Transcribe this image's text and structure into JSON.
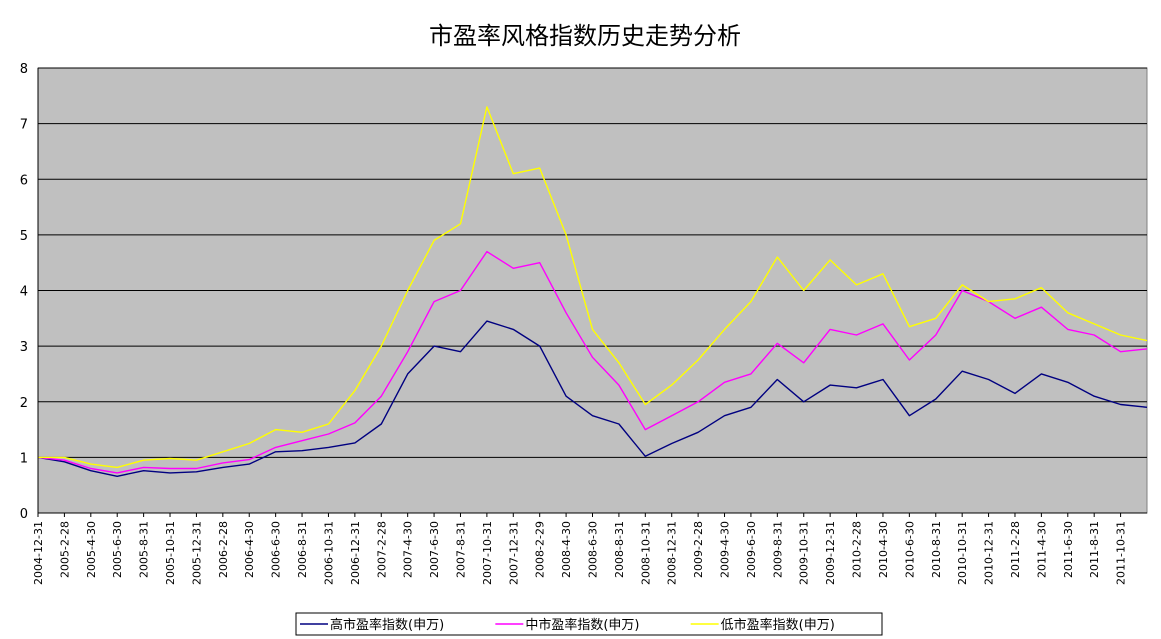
{
  "chart_data": {
    "type": "line",
    "title": "市盈率风格指数历史走势分析",
    "xlabel": "",
    "ylabel": "",
    "ylim": [
      0,
      8
    ],
    "yticks": [
      "0",
      "1",
      "2",
      "3",
      "4",
      "5",
      "6",
      "7",
      "8"
    ],
    "grid": "horizontal",
    "plot_background": "#C0C0C0",
    "legend_position": "bottom",
    "x_tick_labels": [
      "2004-12-31",
      "2005-2-28",
      "2005-4-30",
      "2005-6-30",
      "2005-8-31",
      "2005-10-31",
      "2005-12-31",
      "2006-2-28",
      "2006-4-30",
      "2006-6-30",
      "2006-8-31",
      "2006-10-31",
      "2006-12-31",
      "2007-2-28",
      "2007-4-30",
      "2007-6-30",
      "2007-8-31",
      "2007-10-31",
      "2007-12-31",
      "2008-2-29",
      "2008-4-30",
      "2008-6-30",
      "2008-8-31",
      "2008-10-31",
      "2008-12-31",
      "2009-2-28",
      "2009-4-30",
      "2009-6-30",
      "2009-8-31",
      "2009-10-31",
      "2009-12-31",
      "2010-2-28",
      "2010-4-30",
      "2010-6-30",
      "2010-8-31",
      "2010-10-31",
      "2010-12-31",
      "2011-2-28",
      "2011-4-30",
      "2011-6-30",
      "2011-8-31",
      "2011-10-31"
    ],
    "x": [
      "2004-12-31",
      "2005-2-28",
      "2005-4-30",
      "2005-6-30",
      "2005-8-31",
      "2005-10-31",
      "2005-12-31",
      "2006-2-28",
      "2006-4-30",
      "2006-6-30",
      "2006-8-31",
      "2006-10-31",
      "2006-12-31",
      "2007-2-28",
      "2007-4-30",
      "2007-6-30",
      "2007-8-31",
      "2007-10-31",
      "2007-12-31",
      "2008-2-29",
      "2008-4-30",
      "2008-6-30",
      "2008-8-31",
      "2008-10-31",
      "2008-12-31",
      "2009-2-28",
      "2009-4-30",
      "2009-6-30",
      "2009-8-31",
      "2009-10-31",
      "2009-12-31",
      "2010-2-28",
      "2010-4-30",
      "2010-6-30",
      "2010-8-31",
      "2010-10-31",
      "2010-12-31",
      "2011-2-28",
      "2011-4-30",
      "2011-6-30",
      "2011-8-31",
      "2011-10-31",
      "2011-12-30"
    ],
    "series": [
      {
        "name": "高市盈率指数(申万)",
        "color": "#000080",
        "values": [
          1.0,
          0.92,
          0.76,
          0.66,
          0.76,
          0.72,
          0.74,
          0.82,
          0.88,
          1.1,
          1.12,
          1.18,
          1.26,
          1.6,
          2.5,
          3.0,
          2.9,
          3.45,
          3.3,
          3.0,
          2.1,
          1.75,
          1.6,
          1.02,
          1.25,
          1.45,
          1.75,
          1.9,
          2.4,
          2.0,
          2.3,
          2.25,
          2.4,
          1.75,
          2.05,
          2.55,
          2.4,
          2.15,
          2.5,
          2.35,
          2.1,
          1.95,
          1.9
        ]
      },
      {
        "name": "中市盈率指数(申万)",
        "color": "#FF00FF",
        "values": [
          1.0,
          0.95,
          0.8,
          0.72,
          0.82,
          0.8,
          0.8,
          0.9,
          0.96,
          1.18,
          1.3,
          1.42,
          1.62,
          2.1,
          2.9,
          3.8,
          4.0,
          4.7,
          4.4,
          4.5,
          3.6,
          2.8,
          2.3,
          1.5,
          1.75,
          2.0,
          2.35,
          2.5,
          3.05,
          2.7,
          3.3,
          3.2,
          3.4,
          2.75,
          3.2,
          4.0,
          3.8,
          3.5,
          3.7,
          3.3,
          3.2,
          2.9,
          2.95
        ]
      },
      {
        "name": "低市盈率指数(申万)",
        "color": "#FFFF00",
        "values": [
          1.0,
          1.0,
          0.88,
          0.82,
          0.95,
          0.98,
          0.95,
          1.1,
          1.25,
          1.5,
          1.45,
          1.6,
          2.2,
          3.0,
          4.0,
          4.9,
          5.2,
          7.3,
          6.1,
          6.2,
          5.0,
          3.3,
          2.7,
          1.95,
          2.3,
          2.75,
          3.3,
          3.8,
          4.6,
          4.0,
          4.55,
          4.1,
          4.3,
          3.35,
          3.5,
          4.1,
          3.8,
          3.85,
          4.05,
          3.6,
          3.4,
          3.2,
          3.1
        ]
      }
    ]
  }
}
